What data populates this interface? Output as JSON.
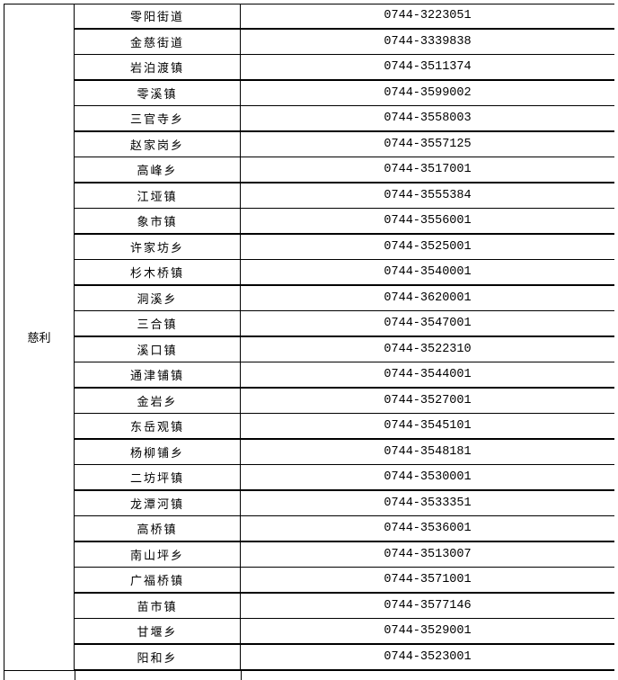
{
  "table": {
    "county": "慈利",
    "rows": [
      {
        "name": "零阳街道",
        "phone": "0744-3223051"
      },
      {
        "name": "金慈街道",
        "phone": "0744-3339838"
      },
      {
        "name": "岩泊渡镇",
        "phone": "0744-3511374"
      },
      {
        "name": "零溪镇",
        "phone": "0744-3599002"
      },
      {
        "name": "三官寺乡",
        "phone": "0744-3558003"
      },
      {
        "name": "赵家岗乡",
        "phone": "0744-3557125"
      },
      {
        "name": "高峰乡",
        "phone": "0744-3517001"
      },
      {
        "name": "江垭镇",
        "phone": "0744-3555384"
      },
      {
        "name": "象市镇",
        "phone": "0744-3556001"
      },
      {
        "name": "许家坊乡",
        "phone": "0744-3525001"
      },
      {
        "name": "杉木桥镇",
        "phone": "0744-3540001"
      },
      {
        "name": "洞溪乡",
        "phone": "0744-3620001"
      },
      {
        "name": "三合镇",
        "phone": "0744-3547001"
      },
      {
        "name": "溪口镇",
        "phone": "0744-3522310"
      },
      {
        "name": "通津铺镇",
        "phone": "0744-3544001"
      },
      {
        "name": "金岩乡",
        "phone": "0744-3527001"
      },
      {
        "name": "东岳观镇",
        "phone": "0744-3545101"
      },
      {
        "name": "杨柳铺乡",
        "phone": "0744-3548181"
      },
      {
        "name": "二坊坪镇",
        "phone": "0744-3530001"
      },
      {
        "name": "龙潭河镇",
        "phone": "0744-3533351"
      },
      {
        "name": "高桥镇",
        "phone": "0744-3536001"
      },
      {
        "name": "南山坪乡",
        "phone": "0744-3513007"
      },
      {
        "name": "广福桥镇",
        "phone": "0744-3571001"
      },
      {
        "name": "苗市镇",
        "phone": "0744-3577146"
      },
      {
        "name": "甘堰乡",
        "phone": "0744-3529001"
      },
      {
        "name": "阳和乡",
        "phone": "0744-3523001"
      }
    ]
  }
}
